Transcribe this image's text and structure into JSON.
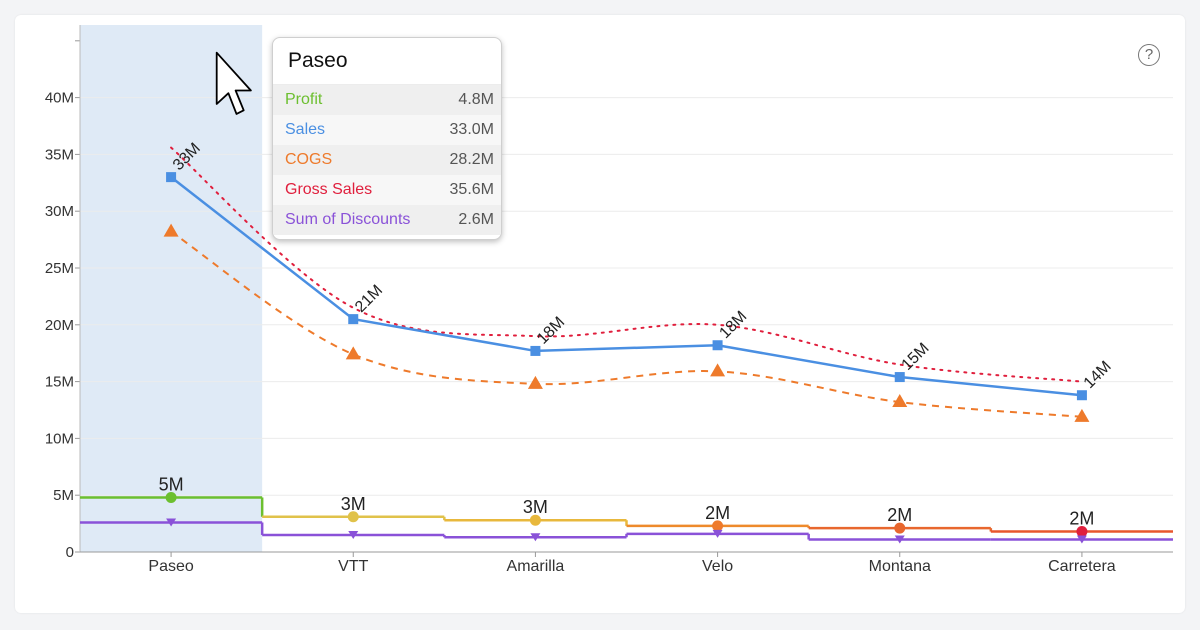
{
  "help_icon": "?",
  "tooltip": {
    "title": "Paseo",
    "rows": [
      {
        "label": "Profit",
        "value": "4.8M",
        "color": "#6cbf2f"
      },
      {
        "label": "Sales",
        "value": "33.0M",
        "color": "#4a8fe2"
      },
      {
        "label": "COGS",
        "value": "28.2M",
        "color": "#ee7a2b"
      },
      {
        "label": "Gross Sales",
        "value": "35.6M",
        "color": "#e01f3d"
      },
      {
        "label": "Sum of Discounts",
        "value": "2.6M",
        "color": "#8a52d8"
      }
    ]
  },
  "chart_data": {
    "type": "line",
    "categories": [
      "Paseo",
      "VTT",
      "Amarilla",
      "Velo",
      "Montana",
      "Carretera"
    ],
    "highlighted_category": "Paseo",
    "yticks": [
      "0",
      "5M",
      "10M",
      "15M",
      "20M",
      "25M",
      "30M",
      "35M",
      "40M"
    ],
    "ylim": [
      0,
      45
    ],
    "grid": true,
    "series": [
      {
        "name": "Gross Sales",
        "style": "dotted",
        "marker": "none",
        "color": "#e01f3d",
        "values": [
          35.6,
          21.5,
          19.0,
          20.0,
          16.5,
          15.0
        ]
      },
      {
        "name": "Sales",
        "style": "solid",
        "marker": "square",
        "color": "#4a8fe2",
        "values": [
          33.0,
          20.5,
          17.7,
          18.2,
          15.4,
          13.8
        ],
        "labels": [
          "33M",
          "21M",
          "18M",
          "18M",
          "15M",
          "14M"
        ]
      },
      {
        "name": "COGS",
        "style": "dashed",
        "marker": "triangle",
        "color": "#ee7a2b",
        "values": [
          28.2,
          17.4,
          14.8,
          15.9,
          13.2,
          11.9
        ]
      },
      {
        "name": "Profit",
        "style": "step",
        "marker": "circle",
        "values": [
          4.8,
          3.1,
          2.8,
          2.3,
          2.1,
          1.8
        ],
        "point_colors": [
          "#6cbf2f",
          "#e0c24a",
          "#e8b83c",
          "#ee7a2b",
          "#e8672e",
          "#e01f3d"
        ],
        "segment_colors": [
          "#6cbf2f",
          "#e0c24a",
          "#e8b83c",
          "#ee8a2b",
          "#e8672e",
          "#e8562e"
        ],
        "labels": [
          "5M",
          "3M",
          "3M",
          "2M",
          "2M",
          "2M"
        ]
      },
      {
        "name": "Sum of Discounts",
        "style": "step",
        "marker": "triangle-down",
        "color": "#8a52d8",
        "values": [
          2.6,
          1.5,
          1.3,
          1.6,
          1.1,
          1.1
        ]
      }
    ]
  }
}
